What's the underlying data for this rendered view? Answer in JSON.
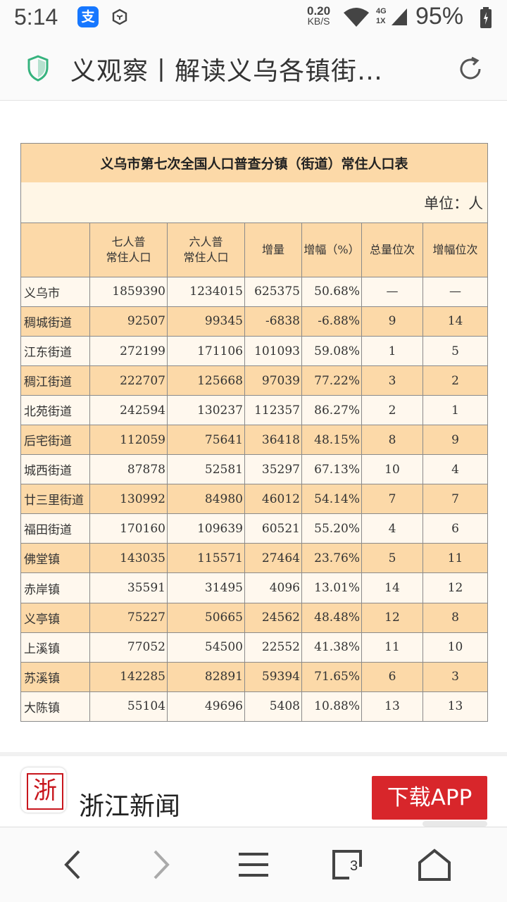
{
  "status_bar": {
    "time": "5:14",
    "alipay_glyph": "支",
    "net_speed_value": "0.20",
    "net_speed_unit": "KB/S",
    "network_type_top": "4G",
    "network_type_bottom": "1X",
    "battery_percent": "95%",
    "icons": [
      "alipay-icon",
      "box-icon",
      "wifi-icon",
      "signal-icon",
      "battery-icon"
    ]
  },
  "address_bar": {
    "page_title": "义观察丨解读义乌各镇街…",
    "icons": [
      "shield-icon",
      "reload-icon"
    ],
    "shield_color": "#36b37e"
  },
  "table": {
    "title": "义乌市第七次全国人口普查分镇（街道）常住人口表",
    "unit": "单位：人",
    "headers": [
      [
        "",
        ""
      ],
      [
        "七人普",
        "常住人口"
      ],
      [
        "六人普",
        "常住人口"
      ],
      [
        "增量",
        ""
      ],
      [
        "增幅（%）",
        ""
      ],
      [
        "总量位次",
        ""
      ],
      [
        "增幅位次",
        ""
      ]
    ],
    "rows": [
      {
        "name": "义乌市",
        "c7": "1859390",
        "c6": "1234015",
        "inc": "625375",
        "rate": "50.68%",
        "rank_total": "—",
        "rank_rate": "—"
      },
      {
        "name": "稠城街道",
        "c7": "92507",
        "c6": "99345",
        "inc": "-6838",
        "rate": "-6.88%",
        "rank_total": "9",
        "rank_rate": "14"
      },
      {
        "name": "江东街道",
        "c7": "272199",
        "c6": "171106",
        "inc": "101093",
        "rate": "59.08%",
        "rank_total": "1",
        "rank_rate": "5"
      },
      {
        "name": "稠江街道",
        "c7": "222707",
        "c6": "125668",
        "inc": "97039",
        "rate": "77.22%",
        "rank_total": "3",
        "rank_rate": "2"
      },
      {
        "name": "北苑街道",
        "c7": "242594",
        "c6": "130237",
        "inc": "112357",
        "rate": "86.27%",
        "rank_total": "2",
        "rank_rate": "1"
      },
      {
        "name": "后宅街道",
        "c7": "112059",
        "c6": "75641",
        "inc": "36418",
        "rate": "48.15%",
        "rank_total": "8",
        "rank_rate": "9"
      },
      {
        "name": "城西街道",
        "c7": "87878",
        "c6": "52581",
        "inc": "35297",
        "rate": "67.13%",
        "rank_total": "10",
        "rank_rate": "4"
      },
      {
        "name": "廿三里街道",
        "c7": "130992",
        "c6": "84980",
        "inc": "46012",
        "rate": "54.14%",
        "rank_total": "7",
        "rank_rate": "7"
      },
      {
        "name": "福田街道",
        "c7": "170160",
        "c6": "109639",
        "inc": "60521",
        "rate": "55.20%",
        "rank_total": "4",
        "rank_rate": "6"
      },
      {
        "name": "佛堂镇",
        "c7": "143035",
        "c6": "115571",
        "inc": "27464",
        "rate": "23.76%",
        "rank_total": "5",
        "rank_rate": "11"
      },
      {
        "name": "赤岸镇",
        "c7": "35591",
        "c6": "31495",
        "inc": "4096",
        "rate": "13.01%",
        "rank_total": "14",
        "rank_rate": "12"
      },
      {
        "name": "义亭镇",
        "c7": "75227",
        "c6": "50665",
        "inc": "24562",
        "rate": "48.48%",
        "rank_total": "12",
        "rank_rate": "8"
      },
      {
        "name": "上溪镇",
        "c7": "77052",
        "c6": "54500",
        "inc": "22552",
        "rate": "41.38%",
        "rank_total": "11",
        "rank_rate": "10"
      },
      {
        "name": "苏溪镇",
        "c7": "142285",
        "c6": "82891",
        "inc": "59394",
        "rate": "71.65%",
        "rank_total": "6",
        "rank_rate": "3"
      },
      {
        "name": "大陈镇",
        "c7": "55104",
        "c6": "49696",
        "inc": "5408",
        "rate": "10.88%",
        "rank_total": "13",
        "rank_rate": "13"
      }
    ],
    "colors": {
      "header_bg": "#fcd9a8",
      "light_row_bg": "#fff8ee"
    }
  },
  "source": {
    "logo_glyph": "浙",
    "name": "浙江新闻",
    "download_label": "下载APP",
    "download_color": "#d8262b"
  },
  "nav_bar": {
    "tabs_count": "3",
    "icons": [
      "back-icon",
      "forward-icon",
      "menu-icon",
      "tabs-icon",
      "home-icon"
    ]
  }
}
